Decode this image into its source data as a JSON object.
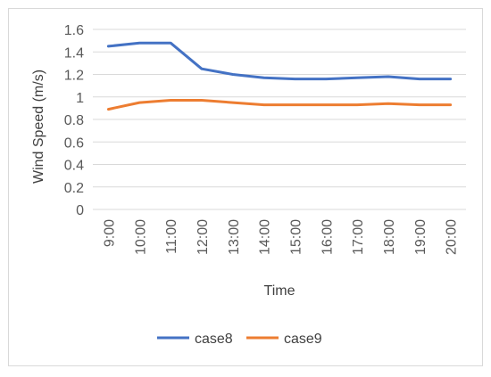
{
  "chart_data": {
    "type": "line",
    "title": "",
    "xlabel": "Time",
    "ylabel": "Wind Speed  (m/s)",
    "categories": [
      "9:00",
      "10:00",
      "11:00",
      "12:00",
      "13:00",
      "14:00",
      "15:00",
      "16:00",
      "17:00",
      "18:00",
      "19:00",
      "20:00"
    ],
    "series": [
      {
        "name": "case8",
        "color": "#4472C4",
        "values": [
          1.45,
          1.48,
          1.48,
          1.25,
          1.2,
          1.17,
          1.16,
          1.16,
          1.17,
          1.18,
          1.16,
          1.16
        ]
      },
      {
        "name": "case9",
        "color": "#ED7D31",
        "values": [
          0.89,
          0.95,
          0.97,
          0.97,
          0.95,
          0.93,
          0.93,
          0.93,
          0.93,
          0.94,
          0.93,
          0.93
        ]
      }
    ],
    "yticks": [
      "0",
      "0.2",
      "0.4",
      "0.6",
      "0.8",
      "1",
      "1.2",
      "1.4",
      "1.6"
    ],
    "ylim": [
      0,
      1.6
    ],
    "grid": true,
    "gridColor": "#d9d9d9",
    "legend": "bottom"
  }
}
